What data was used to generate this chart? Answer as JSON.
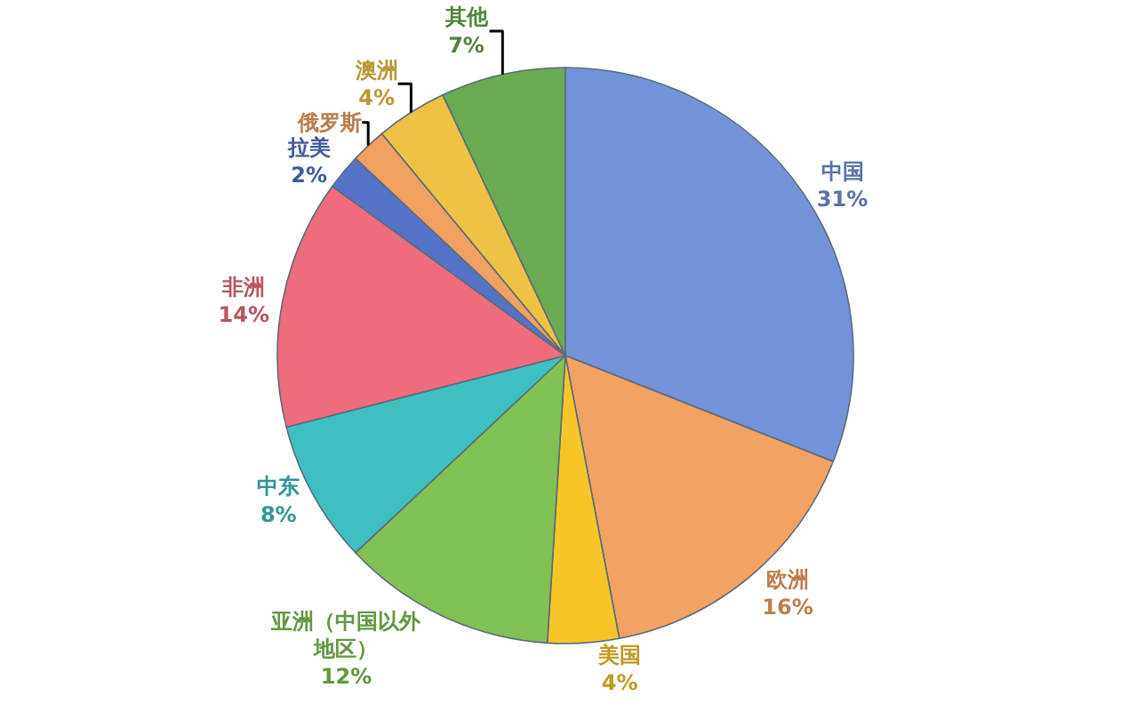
{
  "chart_data": {
    "type": "pie",
    "categories": [
      "中国",
      "欧洲",
      "美国",
      "亚洲（中国以外地区）",
      "中东",
      "非洲",
      "拉美",
      "俄罗斯",
      "澳洲",
      "其他"
    ],
    "values": [
      31,
      16,
      4,
      12,
      8,
      14,
      2,
      2,
      4,
      7
    ],
    "value_labels": [
      "31%",
      "16%",
      "4%",
      "12%",
      "8%",
      "14%",
      "2%",
      null,
      "4%",
      "7%"
    ],
    "colors": [
      "#7393d8",
      "#f2a262",
      "#f6c628",
      "#80c254",
      "#3fc0c0",
      "#ee6c7e",
      "#5474c8",
      "#f0a060",
      "#f0c244",
      "#6aaa50"
    ]
  }
}
